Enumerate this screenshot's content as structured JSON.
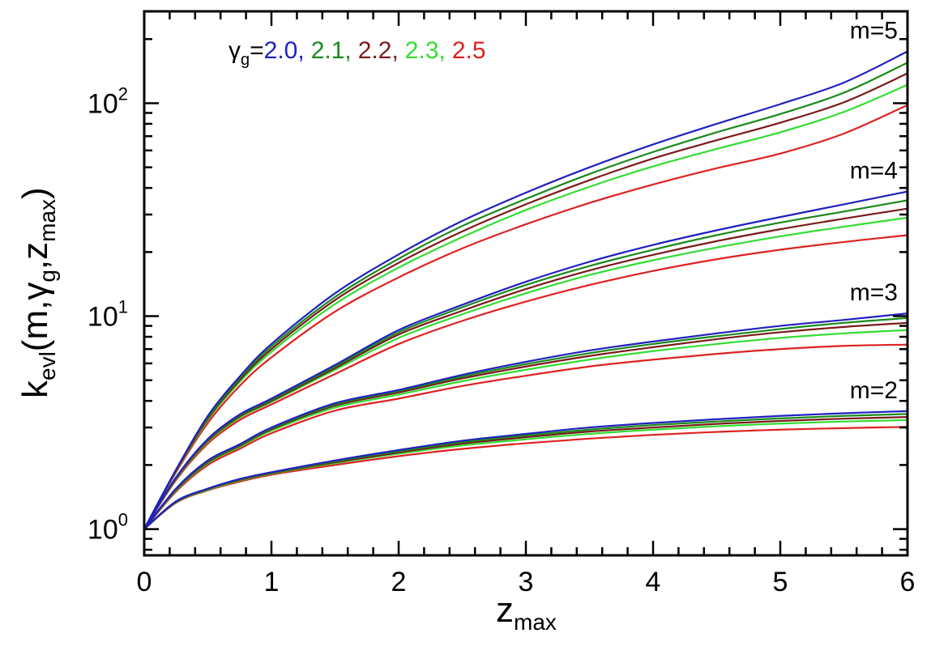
{
  "chart_data": {
    "type": "line",
    "xlabel": {
      "main": "z",
      "sub": "max"
    },
    "ylabel": {
      "main": "k",
      "sub1": "evl",
      "mid1": "(m,",
      "gamma": "γ",
      "sub2": "g",
      "mid2": ",z",
      "sub3": "max",
      "end": ")"
    },
    "x_range": [
      0,
      6
    ],
    "y_range": [
      0.753,
      270
    ],
    "y_scale": "log",
    "x_ticks": [
      {
        "value": 0,
        "label": "0"
      },
      {
        "value": 1,
        "label": "1"
      },
      {
        "value": 2,
        "label": "2"
      },
      {
        "value": 3,
        "label": "3"
      },
      {
        "value": 4,
        "label": "4"
      },
      {
        "value": 5,
        "label": "5"
      },
      {
        "value": 6,
        "label": "6"
      }
    ],
    "y_ticks": [
      {
        "value": 1,
        "base": "10",
        "exp": "0"
      },
      {
        "value": 10,
        "base": "10",
        "exp": "1"
      },
      {
        "value": 100,
        "base": "10",
        "exp": "2"
      }
    ],
    "legend": {
      "prefix": "γ",
      "prefix_sub": "g",
      "equals": "=",
      "entries": [
        {
          "label": "2.0,",
          "color": "#2020c0"
        },
        {
          "label": "2.1,",
          "color": "#1a8a1a"
        },
        {
          "label": "2.2,",
          "color": "#7a1a1a"
        },
        {
          "label": "2.3,",
          "color": "#33dd33"
        },
        {
          "label": "2.5",
          "color": "#dd2222"
        }
      ]
    },
    "group_labels": [
      {
        "text": "m=5",
        "m": 5
      },
      {
        "text": "m=4",
        "m": 4
      },
      {
        "text": "m=3",
        "m": 3
      },
      {
        "text": "m=2",
        "m": 2
      }
    ],
    "x": [
      0,
      0.25,
      0.5,
      0.75,
      1,
      1.5,
      2,
      2.5,
      3,
      3.5,
      4,
      4.5,
      5,
      5.5,
      6
    ],
    "series": [
      {
        "m": 5,
        "gamma": "2.0",
        "color": "#2020c0",
        "values": [
          1,
          1.9,
          3.4,
          5.2,
          7.4,
          12.8,
          19.5,
          28,
          38,
          50,
          64,
          80,
          99,
          125,
          175
        ]
      },
      {
        "m": 5,
        "gamma": "2.1",
        "color": "#1a8a1a",
        "values": [
          1,
          1.9,
          3.35,
          5.1,
          7.2,
          12.3,
          18.6,
          26.5,
          35.5,
          46.5,
          59,
          73,
          89,
          112,
          155
        ]
      },
      {
        "m": 5,
        "gamma": "2.2",
        "color": "#7a1a1a",
        "values": [
          1,
          1.88,
          3.3,
          5.0,
          7.0,
          11.9,
          17.8,
          25,
          33.5,
          43.5,
          55,
          67,
          81,
          101,
          138
        ]
      },
      {
        "m": 5,
        "gamma": "2.3",
        "color": "#33dd33",
        "values": [
          1,
          1.87,
          3.25,
          4.9,
          6.8,
          11.4,
          16.9,
          23.5,
          31.5,
          40.5,
          50.5,
          61,
          73,
          91,
          122
        ]
      },
      {
        "m": 5,
        "gamma": "2.5",
        "color": "#dd2222",
        "values": [
          1,
          1.85,
          3.15,
          4.7,
          6.4,
          10.5,
          15.2,
          20.8,
          27,
          34,
          41.5,
          49.5,
          58,
          72,
          98
        ]
      },
      {
        "m": 4,
        "gamma": "2.0",
        "color": "#2020c0",
        "values": [
          1,
          1.75,
          2.65,
          3.45,
          4.1,
          5.9,
          8.6,
          11.3,
          14.5,
          18,
          21.6,
          25.3,
          29.2,
          33.5,
          38.5
        ]
      },
      {
        "m": 4,
        "gamma": "2.1",
        "color": "#1a8a1a",
        "values": [
          1,
          1.74,
          2.63,
          3.42,
          4.05,
          5.8,
          8.4,
          11,
          14,
          17.2,
          20.5,
          24,
          27.5,
          31,
          35
        ]
      },
      {
        "m": 4,
        "gamma": "2.2",
        "color": "#7a1a1a",
        "values": [
          1,
          1.73,
          2.6,
          3.38,
          4.0,
          5.7,
          8.2,
          10.6,
          13.4,
          16.4,
          19.4,
          22.5,
          25.6,
          28.7,
          32
        ]
      },
      {
        "m": 4,
        "gamma": "2.3",
        "color": "#33dd33",
        "values": [
          1,
          1.72,
          2.57,
          3.33,
          3.95,
          5.6,
          7.9,
          10.2,
          12.8,
          15.6,
          18.3,
          21,
          23.7,
          26.3,
          29
        ]
      },
      {
        "m": 4,
        "gamma": "2.5",
        "color": "#dd2222",
        "values": [
          1,
          1.7,
          2.52,
          3.25,
          3.85,
          5.35,
          7.4,
          9.5,
          11.7,
          14,
          16.3,
          18.5,
          20.5,
          22.3,
          24
        ]
      },
      {
        "m": 3,
        "gamma": "2.0",
        "color": "#2020c0",
        "values": [
          1,
          1.55,
          2.1,
          2.5,
          3.0,
          3.9,
          4.5,
          5.3,
          6.1,
          6.9,
          7.6,
          8.3,
          9.0,
          9.6,
          10.3
        ]
      },
      {
        "m": 3,
        "gamma": "2.1",
        "color": "#1a8a1a",
        "values": [
          1,
          1.54,
          2.08,
          2.48,
          2.97,
          3.85,
          4.45,
          5.2,
          5.95,
          6.7,
          7.4,
          8.05,
          8.7,
          9.3,
          9.8
        ]
      },
      {
        "m": 3,
        "gamma": "2.2",
        "color": "#7a1a1a",
        "values": [
          1,
          1.53,
          2.06,
          2.46,
          2.94,
          3.8,
          4.38,
          5.1,
          5.8,
          6.5,
          7.15,
          7.8,
          8.4,
          8.9,
          9.3
        ]
      },
      {
        "m": 3,
        "gamma": "2.3",
        "color": "#33dd33",
        "values": [
          1,
          1.52,
          2.04,
          2.43,
          2.9,
          3.72,
          4.28,
          4.95,
          5.6,
          6.25,
          6.85,
          7.4,
          7.9,
          8.3,
          8.6
        ]
      },
      {
        "m": 3,
        "gamma": "2.5",
        "color": "#dd2222",
        "values": [
          1,
          1.5,
          2.0,
          2.38,
          2.82,
          3.6,
          4.1,
          4.7,
          5.25,
          5.8,
          6.25,
          6.65,
          7.0,
          7.25,
          7.35
        ]
      },
      {
        "m": 2,
        "gamma": "2.0",
        "color": "#2020c0",
        "values": [
          1,
          1.35,
          1.55,
          1.72,
          1.85,
          2.1,
          2.35,
          2.6,
          2.8,
          3.0,
          3.15,
          3.28,
          3.4,
          3.5,
          3.58
        ]
      },
      {
        "m": 2,
        "gamma": "2.1",
        "color": "#1a8a1a",
        "values": [
          1,
          1.345,
          1.545,
          1.71,
          1.84,
          2.08,
          2.32,
          2.56,
          2.75,
          2.93,
          3.08,
          3.2,
          3.31,
          3.4,
          3.47
        ]
      },
      {
        "m": 2,
        "gamma": "2.2",
        "color": "#7a1a1a",
        "values": [
          1,
          1.34,
          1.54,
          1.7,
          1.83,
          2.06,
          2.29,
          2.52,
          2.7,
          2.87,
          3.0,
          3.12,
          3.22,
          3.3,
          3.36
        ]
      },
      {
        "m": 2,
        "gamma": "2.3",
        "color": "#33dd33",
        "values": [
          1,
          1.335,
          1.53,
          1.69,
          1.82,
          2.04,
          2.26,
          2.47,
          2.64,
          2.8,
          2.93,
          3.04,
          3.13,
          3.2,
          3.25
        ]
      },
      {
        "m": 2,
        "gamma": "2.5",
        "color": "#dd2222",
        "values": [
          1,
          1.33,
          1.52,
          1.67,
          1.8,
          2.0,
          2.2,
          2.38,
          2.53,
          2.66,
          2.77,
          2.86,
          2.93,
          2.98,
          3.02
        ]
      }
    ]
  }
}
